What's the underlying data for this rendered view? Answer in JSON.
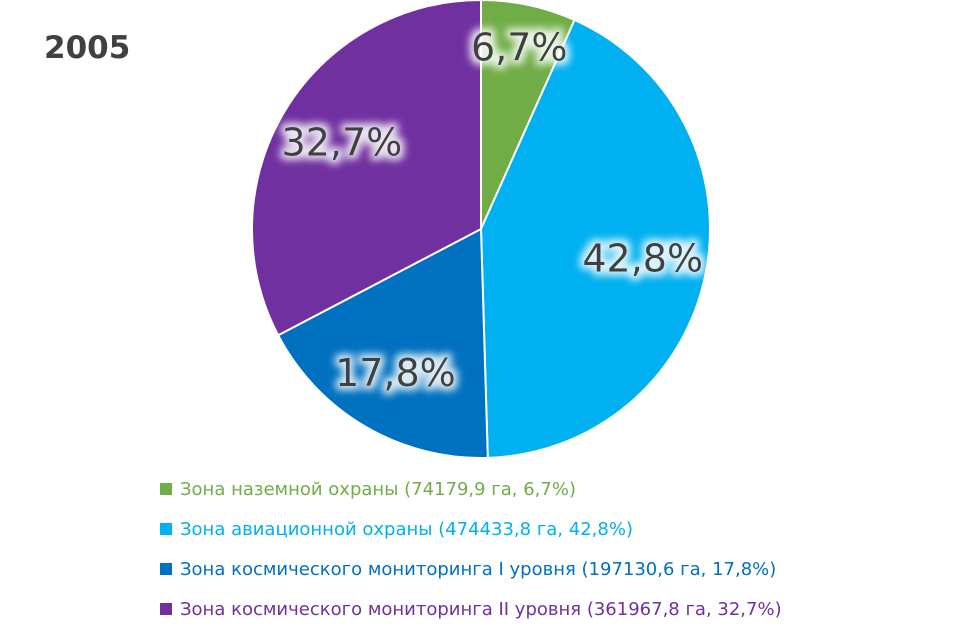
{
  "chart_data": {
    "type": "pie",
    "title": "2005",
    "categories": [
      "Зона наземной охраны (74179,9 га, 6,7%)",
      "Зона авиационной охраны (474433,8 га, 42,8%)",
      "Зона космического мониторинга I уровня (197130,6 га, 17,8%)",
      "Зона космического мониторинга II уровня (361967,8 га, 32,7%)"
    ],
    "values": [
      74179.9,
      474433.8,
      197130.6,
      361967.8
    ],
    "percent_labels": [
      "6,7%",
      "42,8%",
      "17,8%",
      "32,7%"
    ],
    "colors": [
      "#70ad47",
      "#00b0f0",
      "#0070c0",
      "#7030a0"
    ],
    "legend_position": "bottom"
  }
}
